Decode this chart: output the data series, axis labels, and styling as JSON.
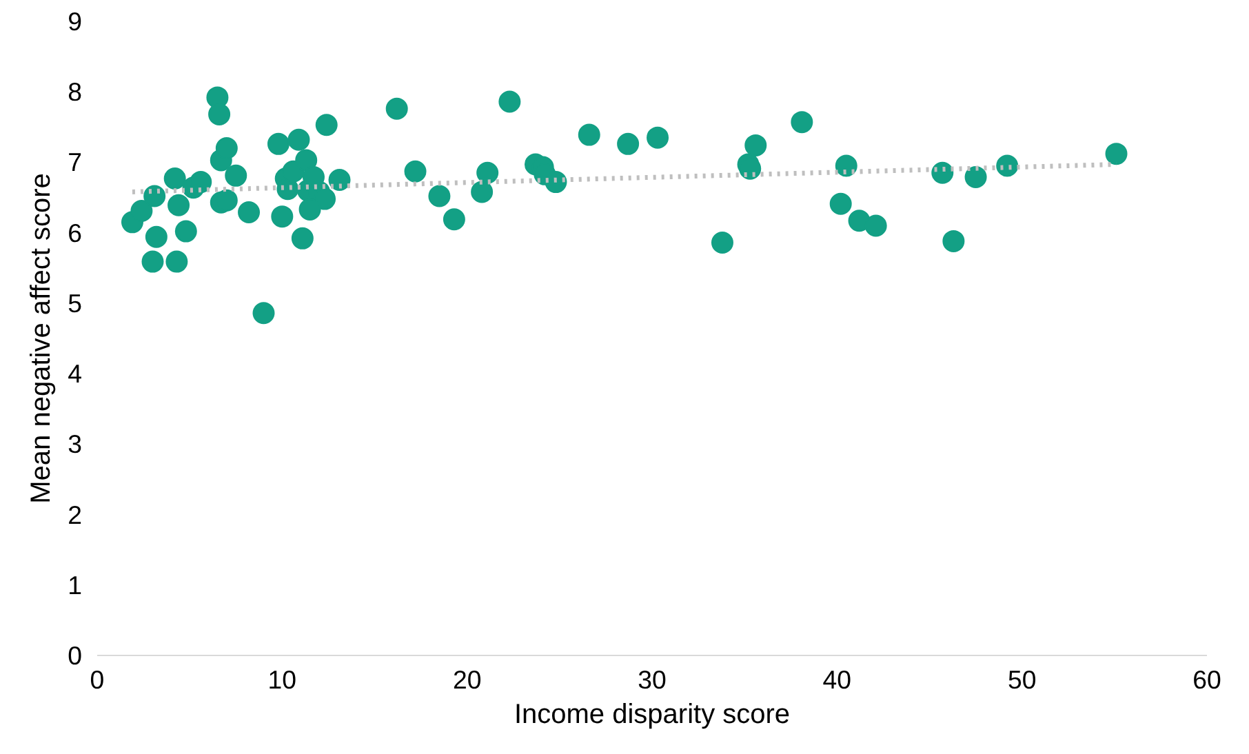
{
  "chart_data": {
    "type": "scatter",
    "xlabel": "Income disparity score",
    "ylabel": "Mean negative affect score",
    "xlim": [
      0,
      60
    ],
    "ylim": [
      0,
      9
    ],
    "xticks": [
      0,
      10,
      20,
      30,
      40,
      50,
      60
    ],
    "yticks": [
      0,
      1,
      2,
      3,
      4,
      5,
      6,
      7,
      8,
      9
    ],
    "grid": false,
    "marker": "circle",
    "series": [
      {
        "color": "#13a085",
        "x": [
          1.9,
          2.4,
          3.0,
          3.2,
          3.1,
          4.2,
          4.4,
          4.3,
          4.8,
          5.2,
          5.6,
          6.5,
          6.6,
          6.7,
          7.0,
          6.7,
          7.0,
          7.5,
          8.2,
          9.0,
          9.8,
          10.0,
          10.2,
          10.3,
          10.6,
          10.9,
          11.1,
          11.3,
          11.4,
          11.7,
          12.0,
          12.3,
          12.4,
          13.1,
          11.5,
          16.2,
          17.2,
          18.5,
          19.3,
          22.3,
          21.1,
          20.8,
          23.7,
          24.1,
          24.2,
          24.8,
          26.6,
          28.7,
          30.3,
          33.8,
          35.2,
          35.3,
          35.6,
          38.1,
          40.5,
          40.2,
          41.2,
          42.1,
          45.7,
          46.3,
          47.5,
          49.2,
          55.1
        ],
        "values": [
          6.15,
          6.31,
          5.59,
          5.94,
          6.52,
          6.77,
          6.39,
          5.59,
          6.02,
          6.64,
          6.72,
          7.92,
          7.68,
          7.03,
          7.2,
          6.43,
          6.46,
          6.81,
          6.29,
          4.86,
          7.26,
          6.23,
          6.77,
          6.62,
          6.87,
          7.32,
          5.92,
          7.03,
          6.6,
          6.79,
          6.58,
          6.48,
          7.53,
          6.75,
          6.33,
          7.76,
          6.87,
          6.52,
          6.19,
          7.86,
          6.85,
          6.58,
          6.97,
          6.93,
          6.83,
          6.72,
          7.39,
          7.26,
          7.35,
          5.86,
          6.97,
          6.91,
          7.24,
          7.57,
          6.95,
          6.41,
          6.17,
          6.1,
          6.85,
          5.88,
          6.79,
          6.95,
          7.12
        ]
      },
      {
        "type": "line",
        "color": "#bfbfbf",
        "line_style": "dotted",
        "marker": "none",
        "x": [
          1.9,
          55.1
        ],
        "values": [
          6.58,
          6.97
        ]
      }
    ]
  }
}
